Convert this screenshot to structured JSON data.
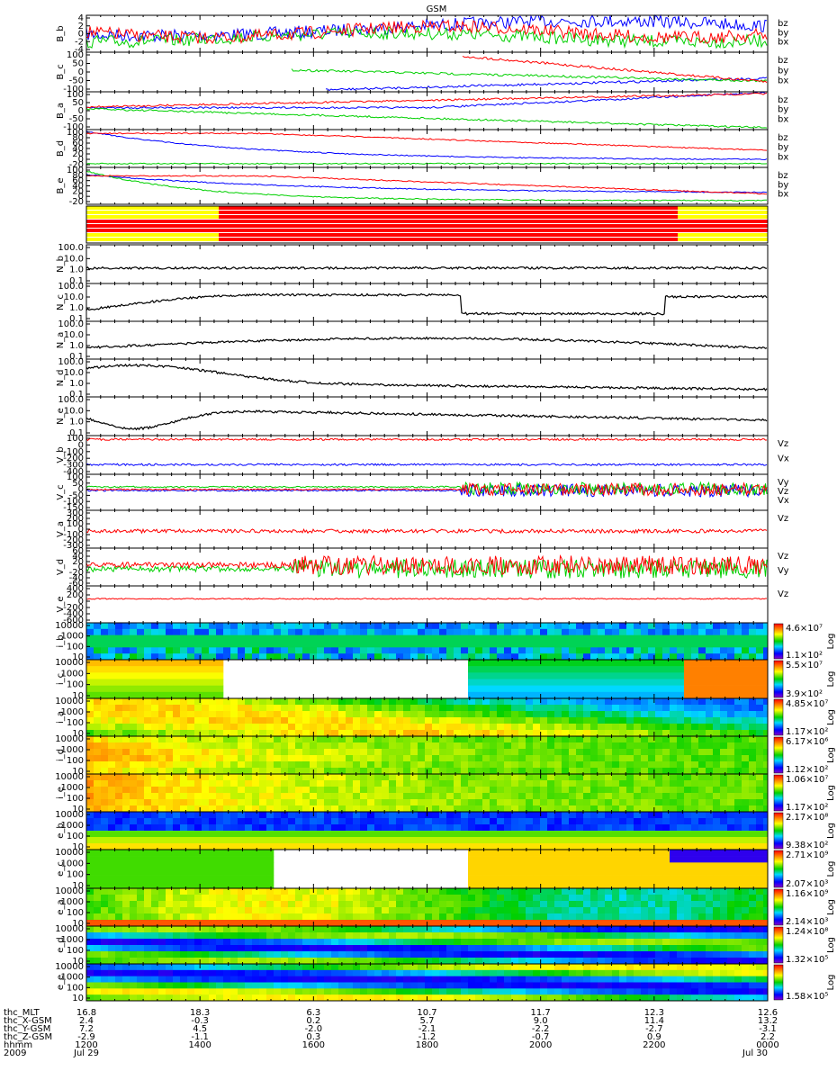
{
  "title": "GSM",
  "colors": {
    "bx": "#0000ff",
    "by": "#00d000",
    "bz": "#ff0000",
    "trace": "#000000",
    "mode_on": "#ff0000",
    "mode_alt": "#ffff00"
  },
  "chart_data": [
    {
      "type": "line",
      "panel": "B_b",
      "ylabel": "B_b",
      "yticks": [
        "4",
        "2",
        "0",
        "-2",
        "-4"
      ],
      "series": [
        {
          "name": "bz"
        },
        {
          "name": "by"
        },
        {
          "name": "bx"
        }
      ]
    },
    {
      "type": "line",
      "panel": "B_c",
      "ylabel": "B_c",
      "yticks": [
        "100",
        "50",
        "0",
        "-50",
        "-100"
      ],
      "series": [
        {
          "name": "bz"
        },
        {
          "name": "by"
        },
        {
          "name": "bx"
        }
      ]
    },
    {
      "type": "line",
      "panel": "B_a",
      "ylabel": "B_a",
      "yticks": [
        "100",
        "50",
        "0",
        "-50",
        "-100"
      ],
      "series": [
        {
          "name": "bz"
        },
        {
          "name": "by"
        },
        {
          "name": "bx"
        }
      ]
    },
    {
      "type": "line",
      "panel": "B_d",
      "ylabel": "B_d",
      "yticks": [
        "100",
        "80",
        "60",
        "40",
        "20",
        "0",
        "-20"
      ],
      "series": [
        {
          "name": "bz"
        },
        {
          "name": "by"
        },
        {
          "name": "bx"
        }
      ]
    },
    {
      "type": "line",
      "panel": "B_e",
      "ylabel": "B_e",
      "yticks": [
        "100",
        "80",
        "60",
        "40",
        "20",
        "0",
        "-20"
      ],
      "series": [
        {
          "name": "bz"
        },
        {
          "name": "by"
        },
        {
          "name": "bx"
        }
      ]
    },
    {
      "type": "line",
      "panel": "N_b",
      "ylabel": "N_b",
      "yticks": [
        "100.0",
        "10.0",
        "1.0",
        "0.1"
      ],
      "log": true
    },
    {
      "type": "line",
      "panel": "N_c",
      "ylabel": "N_c",
      "yticks": [
        "100.0",
        "10.0",
        "1.0",
        "0.1"
      ],
      "log": true
    },
    {
      "type": "line",
      "panel": "N_a",
      "ylabel": "N_a",
      "yticks": [
        "100.0",
        "10.0",
        "1.0",
        "0.1"
      ],
      "log": true
    },
    {
      "type": "line",
      "panel": "N_d",
      "ylabel": "N_d",
      "yticks": [
        "100.0",
        "10.0",
        "1.0",
        "0.1"
      ],
      "log": true
    },
    {
      "type": "line",
      "panel": "N_e",
      "ylabel": "N_e",
      "yticks": [
        "100.0",
        "10.0",
        "1.0",
        "0.1"
      ],
      "log": true
    },
    {
      "type": "line",
      "panel": "V_b",
      "ylabel": "V_b",
      "yticks": [
        "100",
        "0",
        "-100",
        "-200",
        "-300",
        "-400"
      ],
      "series": [
        {
          "name": "Vz"
        },
        {
          "name": "Vx"
        }
      ]
    },
    {
      "type": "line",
      "panel": "V_c",
      "ylabel": "V_c",
      "yticks": [
        "100",
        "50",
        "0",
        "-50",
        "-100",
        "-150"
      ],
      "series": [
        {
          "name": "Vy"
        },
        {
          "name": "Vz"
        },
        {
          "name": "Vx"
        }
      ]
    },
    {
      "type": "line",
      "panel": "V_a",
      "ylabel": "V_a",
      "yticks": [
        "300",
        "200",
        "100",
        "0",
        "-100",
        "-200",
        "-300"
      ],
      "series": [
        {
          "name": "Vz"
        }
      ]
    },
    {
      "type": "line",
      "panel": "V_d",
      "ylabel": "V_d",
      "yticks": [
        "60",
        "40",
        "20",
        "0",
        "-20",
        "-40",
        "-60"
      ],
      "series": [
        {
          "name": "Vz"
        },
        {
          "name": "Vy"
        }
      ]
    },
    {
      "type": "line",
      "panel": "V_e",
      "ylabel": "V_e",
      "yticks": [
        "400",
        "200",
        "0",
        "-200",
        "-400",
        "-600"
      ],
      "series": [
        {
          "name": "Vz"
        }
      ]
    },
    {
      "type": "heatmap",
      "panel": "i_b",
      "ylabel": "i_b",
      "yticks": [
        "10000",
        "1000",
        "100",
        "10"
      ],
      "cmax": "4.6×10⁷",
      "cmin": "1.1×10²",
      "scale": "Log"
    },
    {
      "type": "heatmap",
      "panel": "i_c",
      "ylabel": "i_c",
      "yticks": [
        "10000",
        "1000",
        "100",
        "10"
      ],
      "cmax": "5.5×10⁷",
      "cmin": "3.9×10²",
      "scale": "Log"
    },
    {
      "type": "heatmap",
      "panel": "i_a",
      "ylabel": "i_a",
      "yticks": [
        "10000",
        "1000",
        "100",
        "10"
      ],
      "cmax": "4.85×10⁷",
      "cmin": "1.17×10²",
      "scale": "Log"
    },
    {
      "type": "heatmap",
      "panel": "i_d",
      "ylabel": "i_d",
      "yticks": [
        "10000",
        "1000",
        "100",
        "10"
      ],
      "cmax": "6.17×10⁶",
      "cmin": "1.12×10²",
      "scale": "Log"
    },
    {
      "type": "heatmap",
      "panel": "i_e",
      "ylabel": "i_e",
      "yticks": [
        "10000",
        "1000",
        "100",
        "10"
      ],
      "cmax": "1.06×10⁷",
      "cmin": "1.17×10²",
      "scale": "Log"
    },
    {
      "type": "heatmap",
      "panel": "e_b",
      "ylabel": "e_b",
      "yticks": [
        "10000",
        "1000",
        "100",
        "10"
      ],
      "cmax": "2.17×10⁸",
      "cmin": "9.38×10²",
      "scale": "Log"
    },
    {
      "type": "heatmap",
      "panel": "e_c",
      "ylabel": "e_c",
      "yticks": [
        "10000",
        "1000",
        "100",
        "10"
      ],
      "cmax": "2.71×10⁹",
      "cmin": "2.07×10³",
      "scale": "Log"
    },
    {
      "type": "heatmap",
      "panel": "e_a",
      "ylabel": "e_a",
      "yticks": [
        "10000",
        "1000",
        "100",
        "10"
      ],
      "cmax": "1.16×10⁹",
      "cmin": "2.14×10³",
      "scale": "Log"
    },
    {
      "type": "heatmap",
      "panel": "e_d",
      "ylabel": "e_d",
      "yticks": [
        "10000",
        "1000",
        "100",
        "10"
      ],
      "cmax": "1.24×10⁸",
      "cmin": "1.32×10⁵",
      "scale": "Log"
    },
    {
      "type": "heatmap",
      "panel": "e_e",
      "ylabel": "e_e",
      "yticks": [
        "10000",
        "1000",
        "100",
        "10"
      ],
      "cmax": "",
      "cmin": "1.58×10⁵",
      "scale": "Log"
    }
  ],
  "xaxis": {
    "rows": [
      {
        "label": "thc_MLT",
        "values": [
          "16.8",
          "18.3",
          "6.3",
          "10.7",
          "11.7",
          "12.3",
          "12.6"
        ]
      },
      {
        "label": "thc_X-GSM",
        "values": [
          "2.4",
          "-0.3",
          "0.2",
          "5.7",
          "9.0",
          "11.4",
          "13.2"
        ]
      },
      {
        "label": "thc_Y-GSM",
        "values": [
          "7.2",
          "4.5",
          "-2.0",
          "-2.1",
          "-2.2",
          "-2.7",
          "-3.1"
        ]
      },
      {
        "label": "thc_Z-GSM",
        "values": [
          "-2.9",
          "-1.1",
          "0.3",
          "-1.2",
          "-0.7",
          "0.9",
          "2.2"
        ]
      },
      {
        "label": "hhmm",
        "values": [
          "1200",
          "1400",
          "1600",
          "1800",
          "2000",
          "2200",
          "0000"
        ]
      },
      {
        "label": "2009",
        "values": [
          "Jul 29",
          "",
          "",
          "",
          "",
          "",
          "Jul 30"
        ]
      }
    ]
  }
}
